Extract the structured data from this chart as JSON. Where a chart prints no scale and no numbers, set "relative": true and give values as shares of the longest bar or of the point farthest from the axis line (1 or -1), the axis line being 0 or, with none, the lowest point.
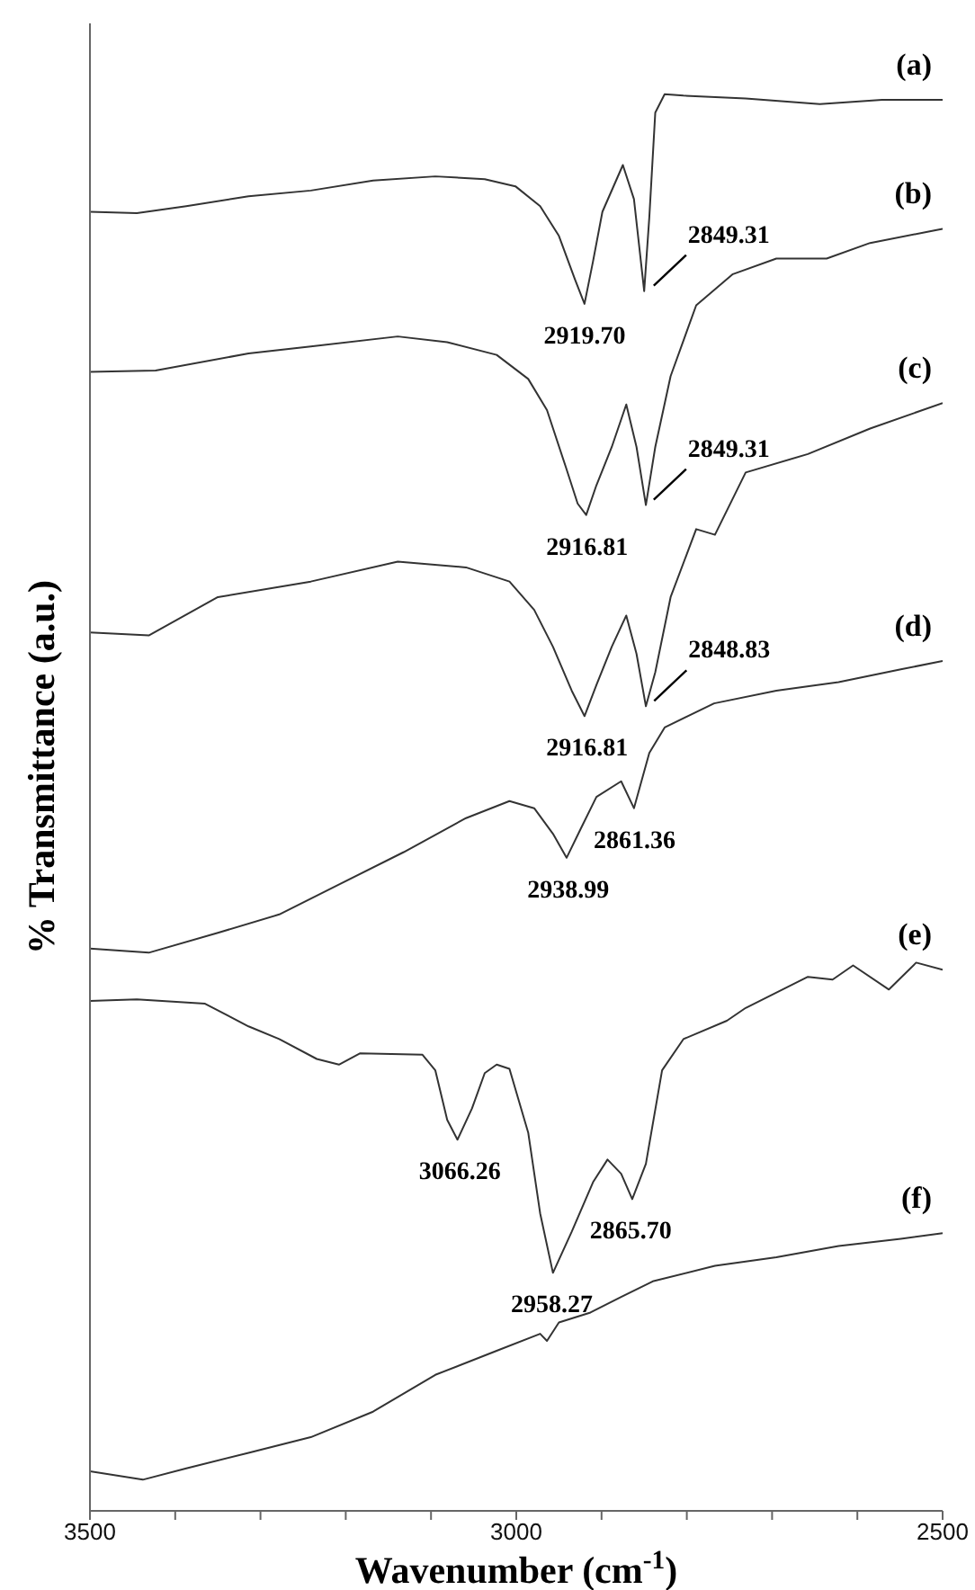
{
  "chart_data": {
    "type": "line",
    "relative": true,
    "xlabel": "Wavenumber (cm$^{-1}$)",
    "ylabel": "% Transmittance (a.u.)",
    "xlim": [
      3500,
      2500
    ],
    "xticks": [
      3500,
      {
        "value": 3400,
        "label": null
      },
      {
        "value": 3300,
        "label": null
      },
      {
        "value": 3200,
        "label": null
      },
      {
        "value": 3100,
        "label": null
      },
      3000,
      {
        "value": 2900,
        "label": null
      },
      {
        "value": 2800,
        "label": null
      },
      {
        "value": 2700,
        "label": null
      },
      {
        "value": 2600,
        "label": null
      },
      2500
    ],
    "marker": "none",
    "line_style": "solid",
    "series": [
      {
        "name": "(a)",
        "color": "#333333",
        "x": [
          3500,
          3445,
          3387,
          3314,
          3241,
          3168,
          3095,
          3037,
          3001,
          2972,
          2950,
          2931,
          2920,
          2910,
          2899,
          2875,
          2862,
          2850,
          2844,
          2837,
          2826,
          2804,
          2731,
          2644,
          2571,
          2500
        ],
        "values": [
          0.917,
          0.916,
          0.921,
          0.928,
          0.932,
          0.939,
          0.942,
          0.94,
          0.935,
          0.921,
          0.9,
          0.869,
          0.852,
          0.882,
          0.917,
          0.95,
          0.926,
          0.861,
          0.913,
          0.987,
          1.0,
          0.999,
          0.997,
          0.993,
          0.996,
          0.996
        ]
      },
      {
        "name": "(b)",
        "color": "#333333",
        "x": [
          3500,
          3423,
          3314,
          3241,
          3139,
          3081,
          3023,
          2986,
          2964,
          2942,
          2928,
          2918,
          2906,
          2888,
          2871,
          2859,
          2848,
          2837,
          2819,
          2789,
          2746,
          2695,
          2636,
          2585,
          2500
        ],
        "values": [
          0.804,
          0.805,
          0.817,
          0.822,
          0.829,
          0.825,
          0.816,
          0.799,
          0.777,
          0.737,
          0.711,
          0.703,
          0.724,
          0.751,
          0.781,
          0.751,
          0.71,
          0.751,
          0.801,
          0.851,
          0.873,
          0.884,
          0.884,
          0.895,
          0.905
        ]
      },
      {
        "name": "(c)",
        "color": "#333333",
        "x": [
          3500,
          3431,
          3350,
          3241,
          3139,
          3059,
          3008,
          2979,
          2957,
          2935,
          2920,
          2906,
          2888,
          2871,
          2859,
          2848,
          2837,
          2819,
          2789,
          2767,
          2731,
          2658,
          2585,
          2500
        ],
        "values": [
          0.62,
          0.618,
          0.645,
          0.656,
          0.67,
          0.666,
          0.656,
          0.636,
          0.61,
          0.579,
          0.561,
          0.583,
          0.61,
          0.632,
          0.605,
          0.568,
          0.592,
          0.645,
          0.693,
          0.689,
          0.733,
          0.746,
          0.764,
          0.782
        ]
      },
      {
        "name": "(d)",
        "color": "#333333",
        "x": [
          3500,
          3431,
          3350,
          3278,
          3205,
          3132,
          3059,
          3008,
          2979,
          2957,
          2941,
          2924,
          2906,
          2877,
          2862,
          2844,
          2826,
          2768,
          2695,
          2622,
          2549,
          2500
        ],
        "values": [
          0.397,
          0.394,
          0.408,
          0.421,
          0.443,
          0.465,
          0.489,
          0.501,
          0.496,
          0.478,
          0.461,
          0.482,
          0.504,
          0.515,
          0.496,
          0.535,
          0.553,
          0.57,
          0.579,
          0.585,
          0.594,
          0.6
        ]
      },
      {
        "name": "(e)",
        "color": "#333333",
        "x": [
          3500,
          3445,
          3365,
          3314,
          3278,
          3234,
          3208,
          3183,
          3110,
          3095,
          3081,
          3069,
          3052,
          3037,
          3023,
          3008,
          2986,
          2972,
          2957,
          2935,
          2910,
          2893,
          2877,
          2864,
          2848,
          2829,
          2804,
          2753,
          2731,
          2658,
          2629,
          2605,
          2563,
          2531,
          2500
        ],
        "values": [
          0.36,
          0.361,
          0.358,
          0.342,
          0.333,
          0.319,
          0.315,
          0.323,
          0.322,
          0.311,
          0.276,
          0.262,
          0.284,
          0.309,
          0.315,
          0.312,
          0.267,
          0.21,
          0.168,
          0.197,
          0.232,
          0.248,
          0.238,
          0.22,
          0.245,
          0.311,
          0.333,
          0.346,
          0.355,
          0.377,
          0.375,
          0.385,
          0.368,
          0.387,
          0.382
        ]
      },
      {
        "name": "(f)",
        "color": "#333333",
        "x": [
          3500,
          3438,
          3387,
          3314,
          3241,
          3168,
          3095,
          3023,
          2972,
          2964,
          2950,
          2913,
          2877,
          2840,
          2767,
          2695,
          2622,
          2549,
          2500
        ],
        "values": [
          0.028,
          0.022,
          0.03,
          0.041,
          0.052,
          0.07,
          0.096,
          0.113,
          0.125,
          0.12,
          0.133,
          0.14,
          0.151,
          0.162,
          0.173,
          0.179,
          0.187,
          0.192,
          0.196
        ]
      }
    ],
    "annotations": [
      {
        "text": "2919.70",
        "x": 2919.7,
        "y": 0.852
      },
      {
        "text": "2849.31",
        "x": 2849.31,
        "y": 0.861
      },
      {
        "text": "2916.81",
        "x": 2916.81,
        "y": 0.703
      },
      {
        "text": "2849.31",
        "x": 2849.31,
        "y": 0.71
      },
      {
        "text": "2916.81",
        "x": 2916.81,
        "y": 0.561
      },
      {
        "text": "2848.83",
        "x": 2848.83,
        "y": 0.568
      },
      {
        "text": "2938.99",
        "x": 2938.99,
        "y": 0.461
      },
      {
        "text": "2861.36",
        "x": 2861.36,
        "y": 0.496
      },
      {
        "text": "3066.26",
        "x": 3066.26,
        "y": 0.262
      },
      {
        "text": "2958.27",
        "x": 2958.27,
        "y": 0.168
      },
      {
        "text": "2865.70",
        "x": 2865.7,
        "y": 0.22
      }
    ]
  }
}
